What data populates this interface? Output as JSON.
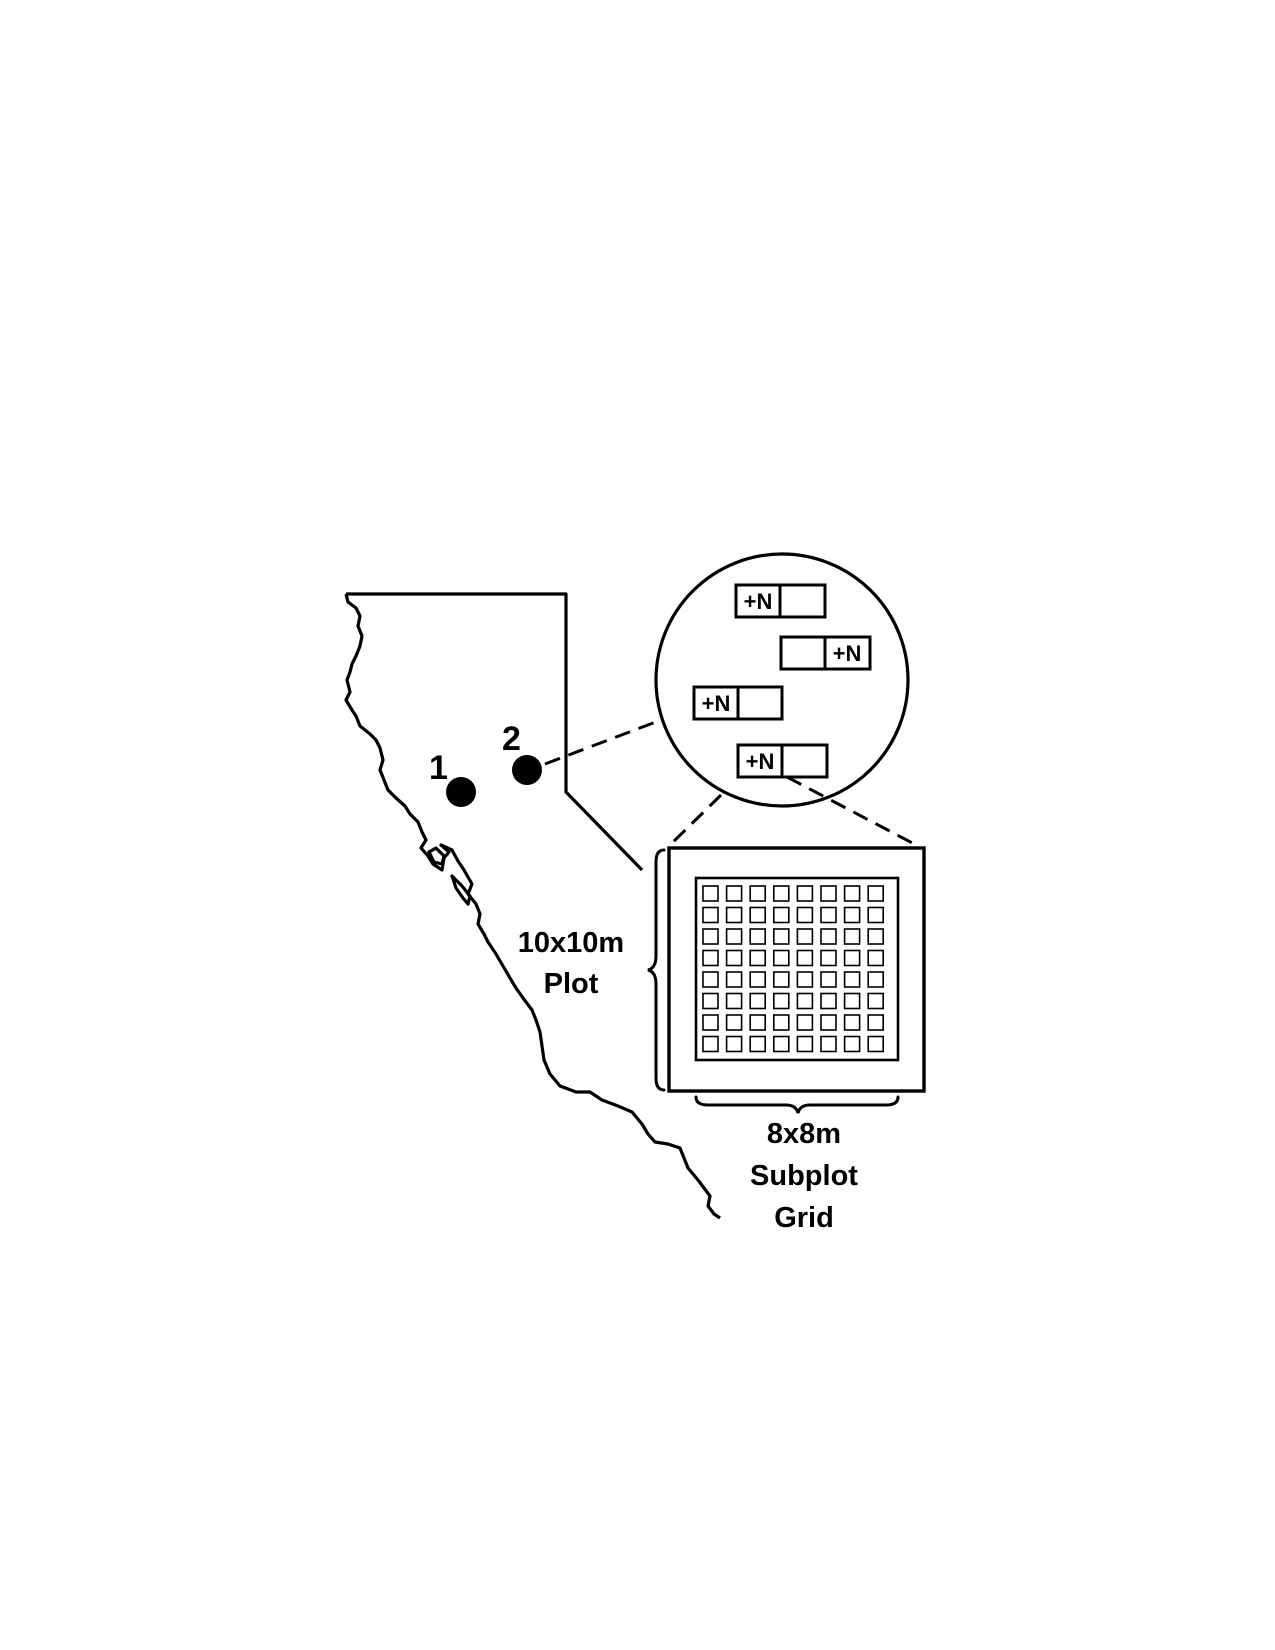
{
  "sites": [
    {
      "label": "1"
    },
    {
      "label": "2"
    }
  ],
  "inset_plots": [
    {
      "label": "+N",
      "treated_side": "left"
    },
    {
      "label": "+N",
      "treated_side": "right"
    },
    {
      "label": "+N",
      "treated_side": "left"
    },
    {
      "label": "+N",
      "treated_side": "left"
    }
  ],
  "plot_size_label": {
    "line1": "10x10m",
    "line2": "Plot"
  },
  "subplot_grid_label": {
    "line1": "8x8m",
    "line2": "Subplot",
    "line3": "Grid"
  },
  "subplot_grid": {
    "rows": 8,
    "cols": 8
  },
  "colors": {
    "ink": "#000000",
    "background": "#ffffff"
  }
}
